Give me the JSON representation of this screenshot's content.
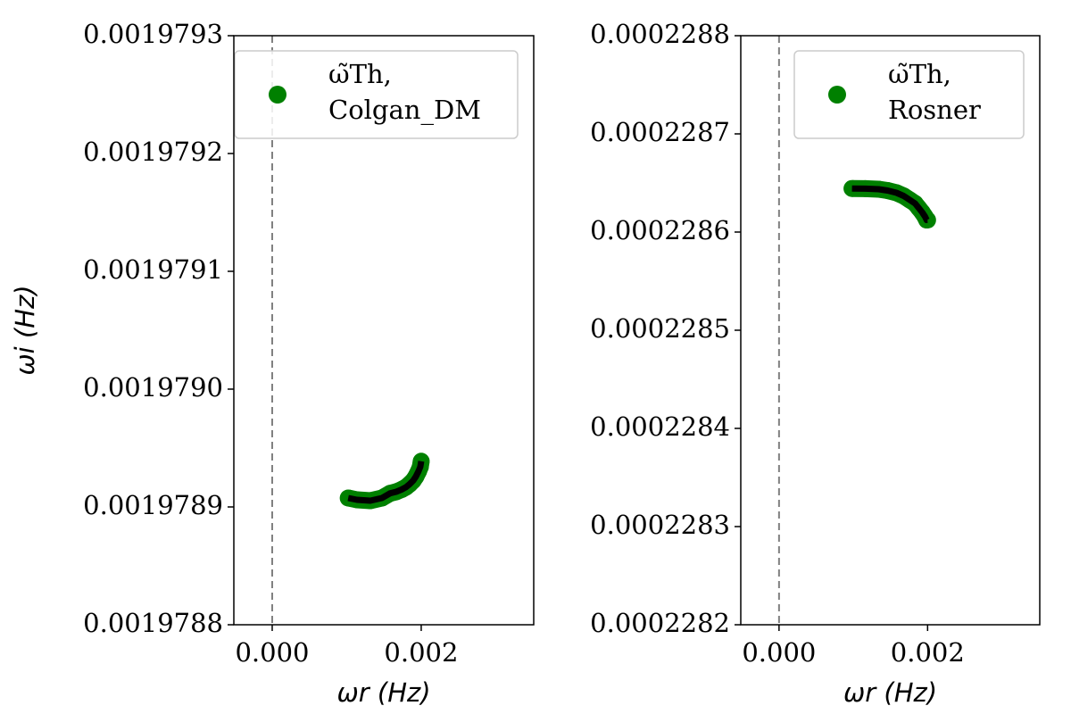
{
  "chart_data": [
    {
      "type": "line",
      "ylabel": "ωi (Hz)",
      "xlabel": "ωr (Hz)",
      "xlim": [
        -0.000515,
        0.00351
      ],
      "xticks": [
        {
          "value": 0,
          "label": "0.000"
        },
        {
          "value": 0.002,
          "label": "0.002"
        }
      ],
      "ylim": [
        0.0019788,
        0.0019793
      ],
      "yticks": [
        0.0019788,
        0.0019789,
        {
          "value": 0.001979,
          "label": "0.0019790"
        },
        0.0019791,
        0.0019792,
        0.0019793
      ],
      "vline_x": 0,
      "legend": "upper right",
      "x": [
        0.00102,
        0.001138,
        0.001317,
        0.001473,
        0.001581,
        0.001665,
        0.001737,
        0.001796,
        0.001844,
        0.001892,
        0.001928,
        0.001964,
        0.001988,
        0.002
      ],
      "series": [
        {
          "name": "ω̃Th, Colgan_DM",
          "color": "#008000",
          "line_color": "#000000",
          "values": [
            0.00197890758,
            0.00197890606,
            0.0019789053,
            0.00197890758,
            0.00197891152,
            0.00197891288,
            0.00197891477,
            0.00197891682,
            0.00197891932,
            0.00197892235,
            0.00197892576,
            0.0019789303,
            0.00197893409,
            0.00197893879
          ]
        }
      ]
    },
    {
      "type": "line",
      "xlabel": "ωr (Hz)",
      "xlim": [
        -0.000515,
        0.00351
      ],
      "xticks": [
        {
          "value": 0,
          "label": "0.000"
        },
        {
          "value": 0.002,
          "label": "0.002"
        }
      ],
      "ylim": [
        0.0002282,
        0.0002288
      ],
      "yticks": [
        0.0002282,
        0.0002283,
        0.0002284,
        0.0002285,
        0.0002286,
        0.0002287,
        0.0002288
      ],
      "vline_x": 0,
      "legend": "upper right",
      "x": [
        0.000982,
        0.001162,
        0.001341,
        0.001461,
        0.001581,
        0.001677,
        0.00176,
        0.001832,
        0.00188,
        0.001928,
        0.001964,
        0.001988,
        0.002
      ],
      "series": [
        {
          "name": "ω̃Th, Rosner",
          "color": "#008000",
          "line_color": "#000000",
          "values": [
            0.00022864436,
            0.00022864418,
            0.00022864364,
            0.00022864227,
            0.00022864,
            0.00022863682,
            0.00022863273,
            0.00022862909,
            0.00022862455,
            0.00022862,
            0.00022861591,
            0.00022861227,
            0.00022861227
          ]
        }
      ]
    }
  ]
}
